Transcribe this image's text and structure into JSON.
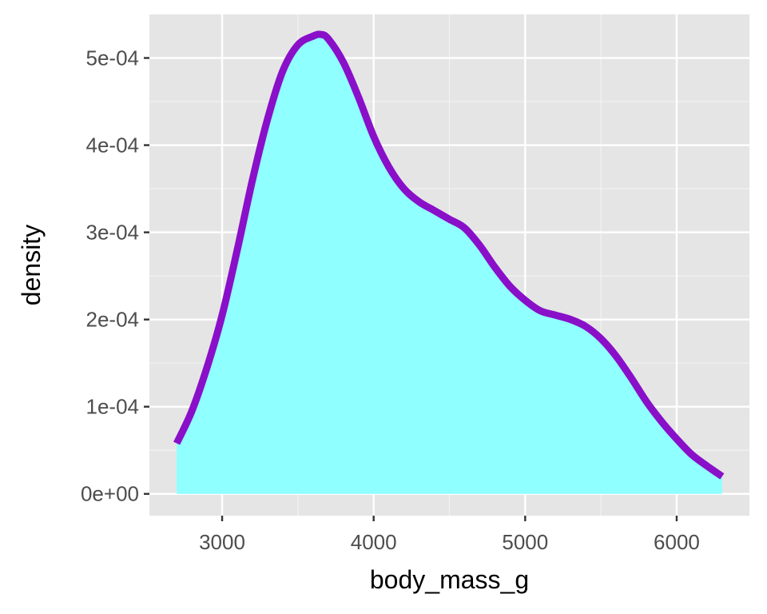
{
  "chart_data": {
    "type": "area",
    "title": "",
    "xlabel": "body_mass_g",
    "ylabel": "density",
    "xlim": [
      2520,
      6480
    ],
    "ylim": [
      -2.5e-05,
      0.00055
    ],
    "x_ticks": [
      3000,
      4000,
      5000,
      6000
    ],
    "x_tick_labels": [
      "3000",
      "4000",
      "5000",
      "6000"
    ],
    "y_ticks": [
      0,
      0.0001,
      0.0002,
      0.0003,
      0.0004,
      0.0005
    ],
    "y_tick_labels": [
      "0e+00",
      "1e-04",
      "2e-04",
      "3e-04",
      "4e-04",
      "5e-04"
    ],
    "grid": true,
    "legend": "none",
    "fill_color": "#8fffff",
    "line_color": "#8a0fc9",
    "panel_background": "#e5e5e5",
    "series": [
      {
        "x": [
          2700,
          2800,
          2900,
          3000,
          3100,
          3200,
          3300,
          3400,
          3500,
          3600,
          3650,
          3700,
          3800,
          3900,
          4000,
          4100,
          4200,
          4300,
          4400,
          4500,
          4600,
          4700,
          4800,
          4900,
          5000,
          5100,
          5200,
          5300,
          5400,
          5500,
          5600,
          5700,
          5800,
          5900,
          6000,
          6100,
          6200,
          6300
        ],
        "y": [
          5.8e-05,
          9.5e-05,
          0.000145,
          0.000205,
          0.00028,
          0.00036,
          0.00043,
          0.000485,
          0.000515,
          0.000525,
          0.000527,
          0.000522,
          0.000495,
          0.000455,
          0.00041,
          0.000375,
          0.00035,
          0.000335,
          0.000325,
          0.000315,
          0.000305,
          0.000285,
          0.00026,
          0.000238,
          0.000222,
          0.00021,
          0.000205,
          0.0002,
          0.000192,
          0.000178,
          0.000158,
          0.000133,
          0.000106,
          8.3e-05,
          6.3e-05,
          4.5e-05,
          3.2e-05,
          2e-05
        ]
      }
    ]
  }
}
